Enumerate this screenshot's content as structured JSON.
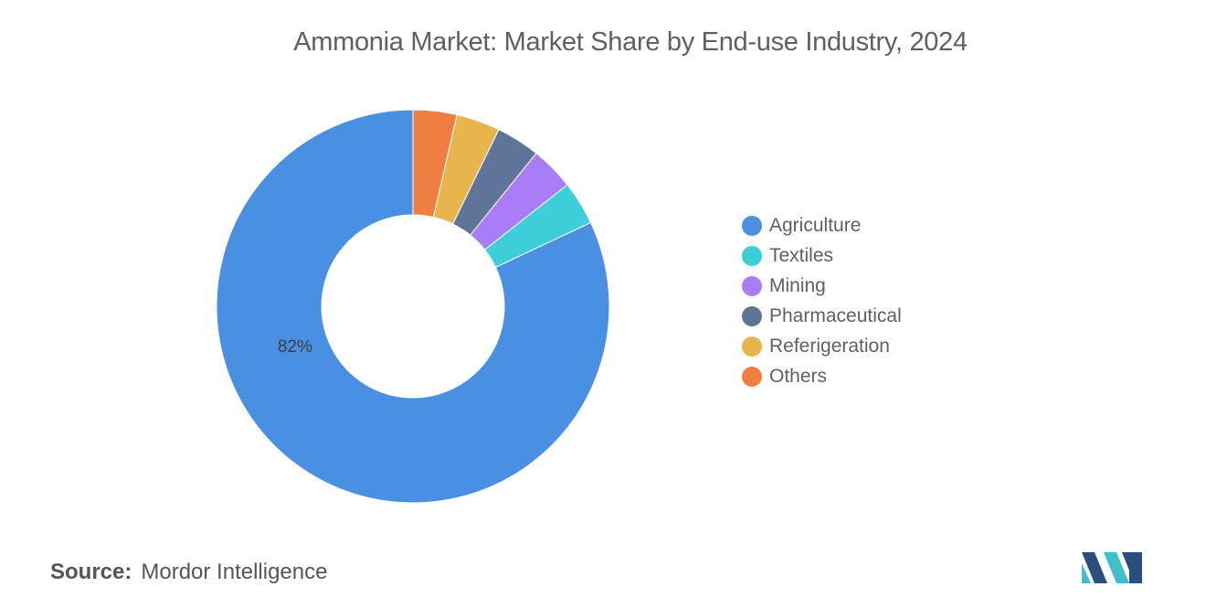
{
  "chart_title": "Ammonia Market: Market Share by End-use Industry, 2024",
  "source": {
    "label": "Source:",
    "value": "Mordor Intelligence"
  },
  "logo": {
    "name": "mordor-intelligence-logo",
    "colors": [
      "#2a4e7f",
      "#3fc0c9"
    ]
  },
  "chart_data": {
    "type": "pie",
    "variant": "donut",
    "title": "Ammonia Market: Market Share by End-use Industry, 2024",
    "start": "top, clockwise from Others",
    "legend_position": "right",
    "series": [
      {
        "name": "Agriculture",
        "value": 82,
        "color": "#4a90e2",
        "label": "82%"
      },
      {
        "name": "Textiles",
        "value": 3.6,
        "color": "#3dcfd9",
        "label": ""
      },
      {
        "name": "Mining",
        "value": 3.6,
        "color": "#a97cf8",
        "label": ""
      },
      {
        "name": "Pharmaceutical",
        "value": 3.6,
        "color": "#5f7499",
        "label": ""
      },
      {
        "name": "Referigeration",
        "value": 3.6,
        "color": "#e8b54c",
        "label": ""
      },
      {
        "name": "Others",
        "value": 3.6,
        "color": "#f07d42",
        "label": ""
      }
    ],
    "draw_order": [
      "Others",
      "Referigeration",
      "Pharmaceutical",
      "Mining",
      "Textiles",
      "Agriculture"
    ]
  }
}
